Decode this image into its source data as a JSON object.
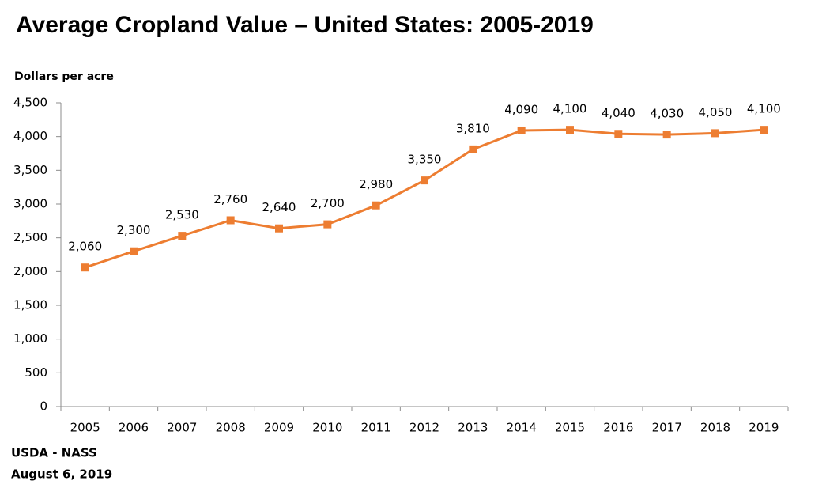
{
  "chart_data": {
    "type": "line",
    "title": "Average Cropland Value – United States: 2005-2019",
    "y_label": "Dollars per acre",
    "categories": [
      "2005",
      "2006",
      "2007",
      "2008",
      "2009",
      "2010",
      "2011",
      "2012",
      "2013",
      "2014",
      "2015",
      "2016",
      "2017",
      "2018",
      "2019"
    ],
    "values": [
      2060,
      2300,
      2530,
      2760,
      2640,
      2700,
      2980,
      3350,
      3810,
      4090,
      4100,
      4040,
      4030,
      4050,
      4100
    ],
    "value_labels": [
      "2,060",
      "2,300",
      "2,530",
      "2,760",
      "2,640",
      "2,700",
      "2,980",
      "3,350",
      "3,810",
      "4,090",
      "4,100",
      "4,040",
      "4,030",
      "4,050",
      "4,100"
    ],
    "color": "#ed7d31",
    "ylim": [
      0,
      4500
    ],
    "yticks": [
      0,
      500,
      {
        "value": 1000,
        "label": "1,000"
      },
      {
        "value": 1500,
        "label": "1,500"
      },
      {
        "value": 2000,
        "label": "2,000"
      },
      {
        "value": 2500,
        "label": "2,500"
      },
      {
        "value": 3000,
        "label": "3,000"
      },
      {
        "value": 3500,
        "label": "3,500"
      },
      {
        "value": 4000,
        "label": "4,000"
      },
      {
        "value": 4500,
        "label": "4,500"
      }
    ],
    "grid": false,
    "footer": [
      "USDA - NASS",
      "August 6, 2019"
    ]
  }
}
